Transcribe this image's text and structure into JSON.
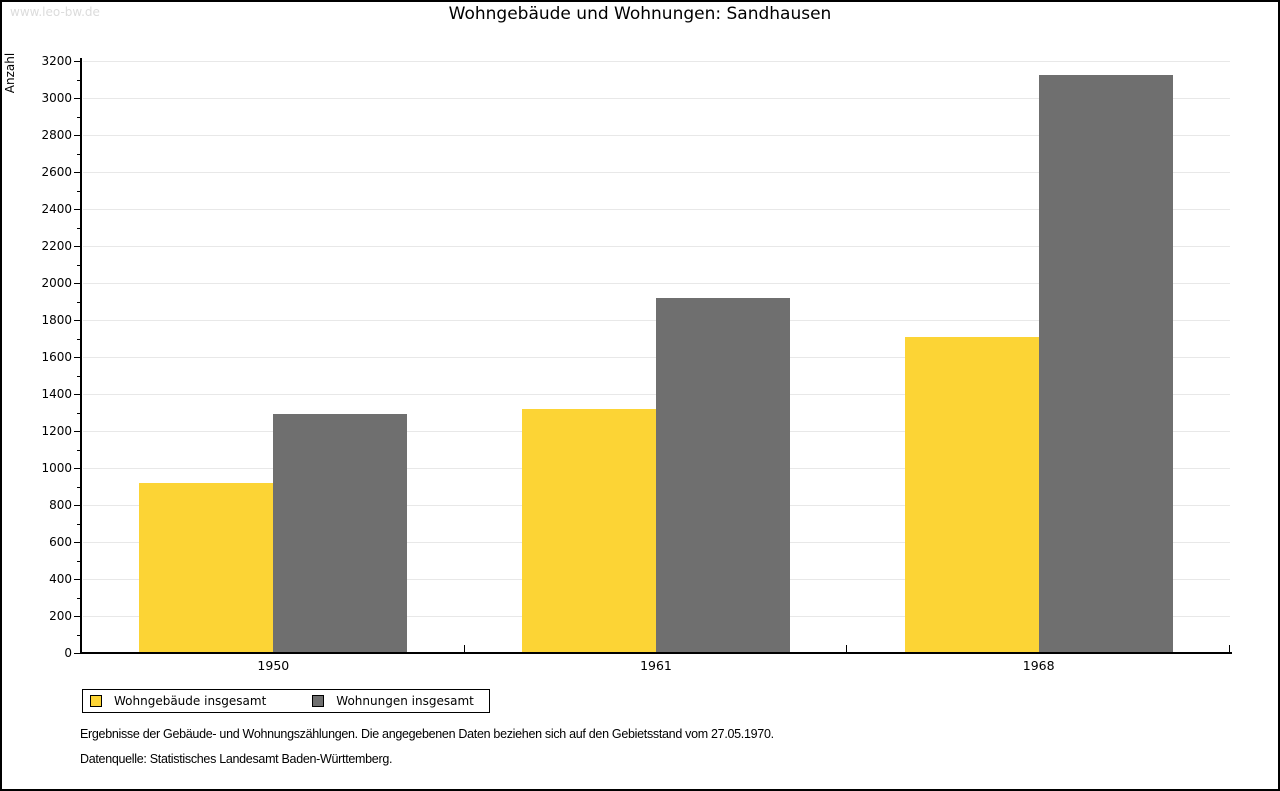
{
  "page": {
    "watermark": "www.leo-bw.de",
    "title": "Wohngebäude und Wohnungen: Sandhausen"
  },
  "chart_data": {
    "type": "bar",
    "title": "Wohngebäude und Wohnungen: Sandhausen",
    "categories": [
      "1950",
      "1961",
      "1968"
    ],
    "series": [
      {
        "name": "Wohngebäude insgesamt",
        "color": "#FCD435",
        "values": [
          920,
          1320,
          1710
        ]
      },
      {
        "name": "Wohnungen insgesamt",
        "color": "#6F6F6F",
        "values": [
          1290,
          1920,
          3125
        ]
      }
    ],
    "xlabel": "",
    "ylabel": "Anzahl",
    "ylim": [
      0,
      3200
    ],
    "ytick_step": 200,
    "minor_tick_step": 100,
    "grid": true,
    "legend_position": "bottom"
  },
  "footer": {
    "line1": "Ergebnisse der Gebäude- und Wohnungszählungen. Die angegebenen Daten beziehen sich auf den Gebietsstand vom 27.05.1970.",
    "line2": "Datenquelle: Statistisches Landesamt Baden-Württemberg."
  },
  "colors": {
    "gridline": "#E8E8E8",
    "axis": "#000000",
    "watermark": "#DCDCDC"
  }
}
